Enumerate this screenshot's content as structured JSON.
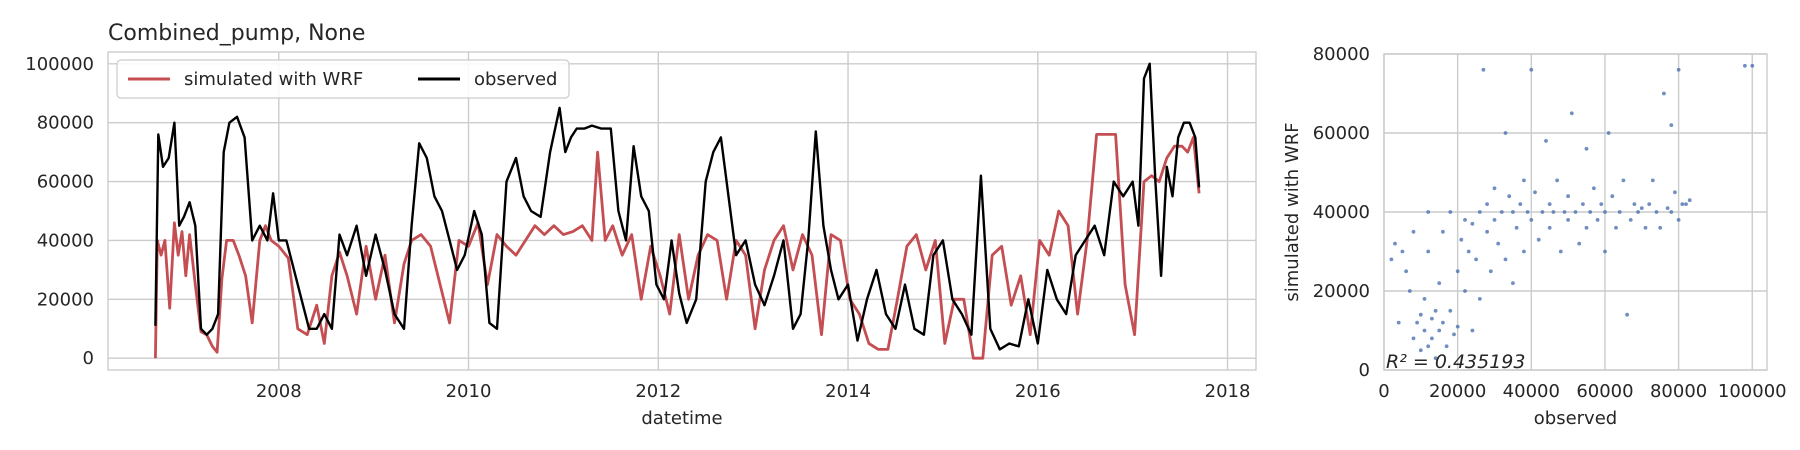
{
  "chart_data": [
    {
      "type": "line",
      "title": "Combined_pump, None",
      "xlabel": "datetime",
      "ylabel": "",
      "xlim": [
        2006.2,
        2018.3
      ],
      "ylim": [
        -4000,
        104000
      ],
      "x_ticks": [
        2008,
        2010,
        2012,
        2014,
        2016,
        2018
      ],
      "x_tick_labels": [
        "2008",
        "2010",
        "2012",
        "2014",
        "2016",
        "2018"
      ],
      "y_ticks": [
        0,
        20000,
        40000,
        60000,
        80000,
        100000
      ],
      "y_tick_labels": [
        "0",
        "20000",
        "40000",
        "60000",
        "80000",
        "100000"
      ],
      "grid": true,
      "legend": {
        "placement": "top-left",
        "columns": 2
      },
      "series": [
        {
          "name": "simulated with WRF",
          "color": "#c44e52",
          "x": [
            2006.7,
            2006.72,
            2006.76,
            2006.8,
            2006.85,
            2006.9,
            2006.94,
            2006.98,
            2007.02,
            2007.06,
            2007.12,
            2007.18,
            2007.24,
            2007.3,
            2007.35,
            2007.4,
            2007.45,
            2007.52,
            2007.58,
            2007.65,
            2007.72,
            2007.8,
            2007.86,
            2007.92,
            2008.0,
            2008.1,
            2008.2,
            2008.3,
            2008.4,
            2008.48,
            2008.56,
            2008.64,
            2008.72,
            2008.82,
            2008.92,
            2009.02,
            2009.12,
            2009.22,
            2009.32,
            2009.4,
            2009.5,
            2009.6,
            2009.7,
            2009.8,
            2009.9,
            2010.0,
            2010.1,
            2010.2,
            2010.3,
            2010.4,
            2010.5,
            2010.6,
            2010.7,
            2010.8,
            2010.9,
            2011.0,
            2011.1,
            2011.2,
            2011.3,
            2011.36,
            2011.44,
            2011.52,
            2011.62,
            2011.72,
            2011.82,
            2011.92,
            2012.02,
            2012.12,
            2012.22,
            2012.32,
            2012.42,
            2012.52,
            2012.62,
            2012.72,
            2012.82,
            2012.92,
            2013.02,
            2013.12,
            2013.22,
            2013.32,
            2013.42,
            2013.52,
            2013.62,
            2013.72,
            2013.82,
            2013.92,
            2014.02,
            2014.12,
            2014.22,
            2014.32,
            2014.42,
            2014.52,
            2014.62,
            2014.72,
            2014.82,
            2014.92,
            2015.02,
            2015.12,
            2015.22,
            2015.32,
            2015.42,
            2015.52,
            2015.62,
            2015.72,
            2015.82,
            2015.92,
            2016.02,
            2016.12,
            2016.22,
            2016.32,
            2016.42,
            2016.52,
            2016.62,
            2016.72,
            2016.82,
            2016.92,
            2017.02,
            2017.12,
            2017.2,
            2017.28,
            2017.36,
            2017.44,
            2017.52,
            2017.58,
            2017.64,
            2017.7
          ],
          "values": [
            0,
            40000,
            35000,
            40000,
            17000,
            46000,
            35000,
            43000,
            28000,
            42000,
            25000,
            9000,
            8000,
            4000,
            2000,
            27000,
            40000,
            40000,
            35000,
            28000,
            12000,
            40000,
            45000,
            40000,
            38000,
            34000,
            10000,
            8000,
            18000,
            5000,
            28000,
            36000,
            28000,
            15000,
            38000,
            20000,
            35000,
            12000,
            32000,
            40000,
            42000,
            38000,
            25000,
            12000,
            40000,
            38000,
            46000,
            25000,
            42000,
            38000,
            35000,
            40000,
            45000,
            42000,
            45000,
            42000,
            43000,
            45000,
            40000,
            70000,
            40000,
            45000,
            35000,
            42000,
            20000,
            38000,
            28000,
            15000,
            42000,
            20000,
            35000,
            42000,
            40000,
            20000,
            40000,
            35000,
            10000,
            30000,
            40000,
            45000,
            30000,
            42000,
            35000,
            8000,
            42000,
            40000,
            20000,
            15000,
            5000,
            3000,
            3000,
            20000,
            38000,
            42000,
            30000,
            40000,
            5000,
            20000,
            20000,
            0,
            0,
            35000,
            38000,
            18000,
            28000,
            8000,
            40000,
            35000,
            50000,
            45000,
            15000,
            40000,
            76000,
            76000,
            76000,
            25000,
            8000,
            60000,
            62000,
            60000,
            68000,
            72000,
            72000,
            70000,
            75000,
            56000
          ]
        },
        {
          "name": "observed",
          "color": "#000000",
          "x": [
            2006.7,
            2006.73,
            2006.78,
            2006.84,
            2006.9,
            2006.95,
            2007.0,
            2007.06,
            2007.12,
            2007.18,
            2007.24,
            2007.3,
            2007.36,
            2007.42,
            2007.48,
            2007.56,
            2007.64,
            2007.72,
            2007.8,
            2007.88,
            2007.94,
            2008.0,
            2008.08,
            2008.16,
            2008.24,
            2008.32,
            2008.4,
            2008.48,
            2008.56,
            2008.64,
            2008.72,
            2008.82,
            2008.92,
            2009.02,
            2009.12,
            2009.22,
            2009.32,
            2009.4,
            2009.48,
            2009.56,
            2009.64,
            2009.72,
            2009.8,
            2009.88,
            2009.96,
            2010.06,
            2010.14,
            2010.22,
            2010.3,
            2010.4,
            2010.5,
            2010.58,
            2010.66,
            2010.76,
            2010.86,
            2010.96,
            2011.02,
            2011.08,
            2011.14,
            2011.22,
            2011.3,
            2011.4,
            2011.5,
            2011.58,
            2011.66,
            2011.74,
            2011.82,
            2011.9,
            2011.98,
            2012.06,
            2012.14,
            2012.22,
            2012.3,
            2012.4,
            2012.5,
            2012.58,
            2012.66,
            2012.74,
            2012.82,
            2012.92,
            2013.02,
            2013.12,
            2013.22,
            2013.32,
            2013.42,
            2013.5,
            2013.58,
            2013.66,
            2013.74,
            2013.82,
            2013.9,
            2014.0,
            2014.1,
            2014.2,
            2014.3,
            2014.4,
            2014.5,
            2014.6,
            2014.7,
            2014.8,
            2014.9,
            2015.0,
            2015.1,
            2015.2,
            2015.3,
            2015.4,
            2015.5,
            2015.6,
            2015.7,
            2015.8,
            2015.9,
            2016.0,
            2016.1,
            2016.2,
            2016.3,
            2016.4,
            2016.5,
            2016.6,
            2016.7,
            2016.8,
            2016.9,
            2017.0,
            2017.06,
            2017.12,
            2017.18,
            2017.24,
            2017.3,
            2017.36,
            2017.42,
            2017.48,
            2017.54,
            2017.6,
            2017.66,
            2017.7
          ],
          "values": [
            11000,
            76000,
            65000,
            68000,
            80000,
            45000,
            48000,
            53000,
            45000,
            10000,
            8000,
            10000,
            15000,
            70000,
            80000,
            82000,
            75000,
            40000,
            45000,
            40000,
            56000,
            40000,
            40000,
            30000,
            20000,
            10000,
            10000,
            15000,
            10000,
            42000,
            35000,
            45000,
            28000,
            42000,
            30000,
            15000,
            10000,
            45000,
            73000,
            68000,
            55000,
            50000,
            40000,
            30000,
            35000,
            50000,
            42000,
            12000,
            10000,
            60000,
            68000,
            55000,
            50000,
            48000,
            70000,
            85000,
            70000,
            75000,
            78000,
            78000,
            79000,
            78000,
            78000,
            50000,
            40000,
            72000,
            55000,
            50000,
            25000,
            20000,
            40000,
            22000,
            12000,
            20000,
            60000,
            70000,
            75000,
            55000,
            35000,
            40000,
            25000,
            18000,
            28000,
            40000,
            10000,
            15000,
            40000,
            77000,
            45000,
            30000,
            20000,
            25000,
            6000,
            20000,
            30000,
            15000,
            10000,
            25000,
            10000,
            8000,
            35000,
            40000,
            20000,
            15000,
            8000,
            62000,
            10000,
            3000,
            5000,
            4000,
            20000,
            5000,
            30000,
            20000,
            15000,
            35000,
            40000,
            45000,
            35000,
            60000,
            55000,
            60000,
            45000,
            95000,
            100000,
            60000,
            28000,
            65000,
            55000,
            75000,
            80000,
            80000,
            75000,
            58000
          ]
        }
      ]
    },
    {
      "type": "scatter",
      "title": "",
      "xlabel": "observed",
      "ylabel": "simulated with WRF",
      "xlim": [
        0,
        104000
      ],
      "ylim": [
        0,
        80000
      ],
      "x_ticks": [
        0,
        20000,
        40000,
        60000,
        80000,
        100000
      ],
      "x_tick_labels": [
        "0",
        "20000",
        "40000",
        "60000",
        "80000",
        "100000"
      ],
      "y_ticks": [
        0,
        20000,
        40000,
        60000,
        80000
      ],
      "y_tick_labels": [
        "0",
        "20000",
        "40000",
        "60000",
        "80000"
      ],
      "grid": true,
      "point_color": "#4c72b0",
      "annotation": "R² = 0.435193",
      "points": [
        [
          2000,
          28000
        ],
        [
          3000,
          32000
        ],
        [
          4000,
          12000
        ],
        [
          5000,
          30000
        ],
        [
          6000,
          25000
        ],
        [
          7000,
          20000
        ],
        [
          8000,
          35000
        ],
        [
          8000,
          8000
        ],
        [
          9000,
          12000
        ],
        [
          10000,
          5000
        ],
        [
          10000,
          14000
        ],
        [
          11000,
          10000
        ],
        [
          11000,
          18000
        ],
        [
          12000,
          6000
        ],
        [
          12000,
          30000
        ],
        [
          12000,
          40000
        ],
        [
          13000,
          8000
        ],
        [
          13000,
          13000
        ],
        [
          14000,
          15000
        ],
        [
          14000,
          3000
        ],
        [
          15000,
          10000
        ],
        [
          15000,
          22000
        ],
        [
          16000,
          12000
        ],
        [
          16000,
          35000
        ],
        [
          17000,
          6000
        ],
        [
          18000,
          40000
        ],
        [
          18000,
          15000
        ],
        [
          19000,
          9000
        ],
        [
          20000,
          25000
        ],
        [
          20000,
          11000
        ],
        [
          21000,
          33000
        ],
        [
          22000,
          38000
        ],
        [
          22000,
          20000
        ],
        [
          23000,
          30000
        ],
        [
          24000,
          37000
        ],
        [
          24000,
          10000
        ],
        [
          25000,
          28000
        ],
        [
          26000,
          40000
        ],
        [
          26000,
          18000
        ],
        [
          27000,
          76000
        ],
        [
          28000,
          42000
        ],
        [
          28000,
          35000
        ],
        [
          29000,
          25000
        ],
        [
          30000,
          38000
        ],
        [
          30000,
          46000
        ],
        [
          31000,
          32000
        ],
        [
          32000,
          40000
        ],
        [
          33000,
          28000
        ],
        [
          33000,
          60000
        ],
        [
          34000,
          44000
        ],
        [
          35000,
          40000
        ],
        [
          35000,
          22000
        ],
        [
          36000,
          36000
        ],
        [
          37000,
          42000
        ],
        [
          38000,
          48000
        ],
        [
          38000,
          30000
        ],
        [
          39000,
          40000
        ],
        [
          40000,
          38000
        ],
        [
          40000,
          76000
        ],
        [
          41000,
          45000
        ],
        [
          42000,
          33000
        ],
        [
          43000,
          40000
        ],
        [
          44000,
          58000
        ],
        [
          45000,
          42000
        ],
        [
          45000,
          36000
        ],
        [
          46000,
          40000
        ],
        [
          47000,
          48000
        ],
        [
          48000,
          30000
        ],
        [
          49000,
          40000
        ],
        [
          50000,
          44000
        ],
        [
          50000,
          38000
        ],
        [
          51000,
          65000
        ],
        [
          52000,
          40000
        ],
        [
          53000,
          32000
        ],
        [
          54000,
          42000
        ],
        [
          55000,
          36000
        ],
        [
          55000,
          56000
        ],
        [
          56000,
          40000
        ],
        [
          57000,
          46000
        ],
        [
          58000,
          38000
        ],
        [
          59000,
          42000
        ],
        [
          60000,
          40000
        ],
        [
          60000,
          30000
        ],
        [
          61000,
          60000
        ],
        [
          62000,
          44000
        ],
        [
          63000,
          36000
        ],
        [
          64000,
          40000
        ],
        [
          65000,
          48000
        ],
        [
          66000,
          14000
        ],
        [
          67000,
          38000
        ],
        [
          68000,
          42000
        ],
        [
          69000,
          40000
        ],
        [
          70000,
          41000
        ],
        [
          71000,
          36000
        ],
        [
          72000,
          42000
        ],
        [
          73000,
          48000
        ],
        [
          74000,
          40000
        ],
        [
          75000,
          36000
        ],
        [
          76000,
          70000
        ],
        [
          77000,
          41000
        ],
        [
          78000,
          62000
        ],
        [
          78000,
          40000
        ],
        [
          79000,
          45000
        ],
        [
          80000,
          76000
        ],
        [
          80000,
          38000
        ],
        [
          81000,
          42000
        ],
        [
          82000,
          42000
        ],
        [
          83000,
          43000
        ],
        [
          98000,
          77000
        ],
        [
          100000,
          77000
        ]
      ]
    }
  ]
}
